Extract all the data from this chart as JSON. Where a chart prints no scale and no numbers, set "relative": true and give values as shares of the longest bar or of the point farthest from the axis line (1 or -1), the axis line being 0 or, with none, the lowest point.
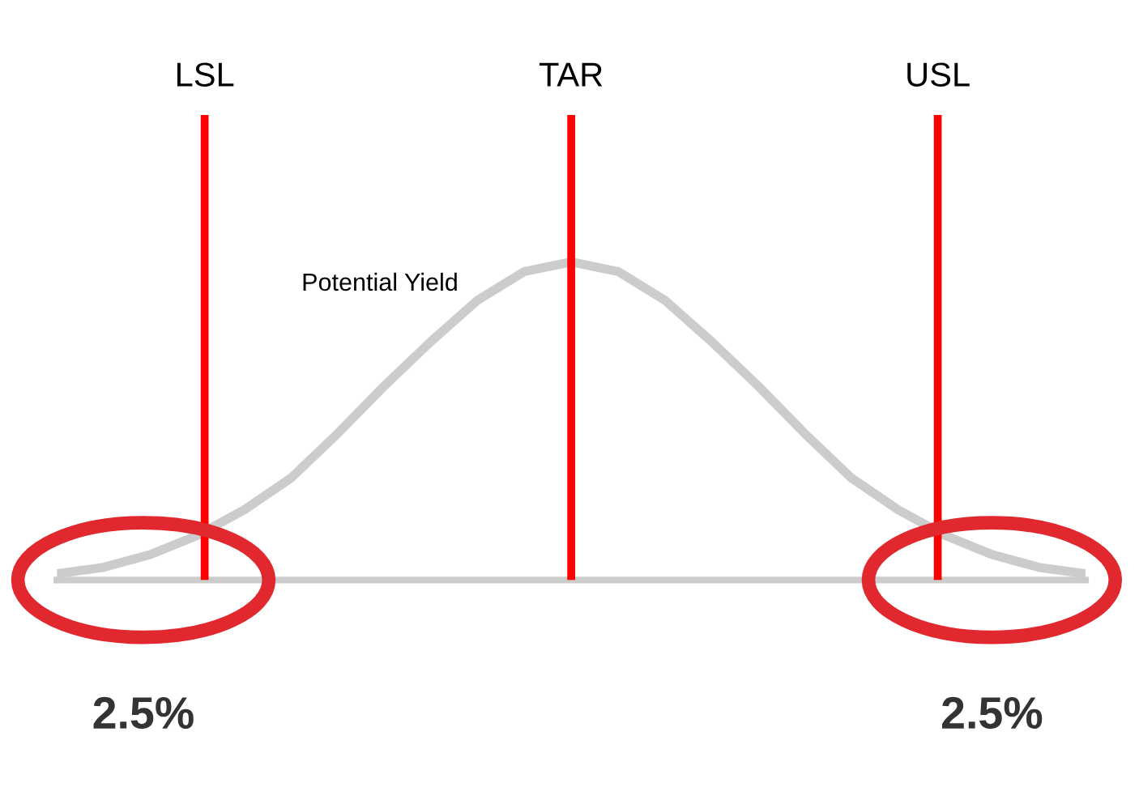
{
  "chart_data": {
    "type": "line",
    "relative": true,
    "legend": false,
    "marker": "none",
    "line_style": "solid",
    "categories": [
      null,
      null,
      null,
      null,
      null,
      null,
      null,
      null,
      null,
      null,
      null,
      null,
      null,
      null,
      null,
      null,
      null,
      null,
      null,
      null,
      null,
      null,
      null
    ],
    "series": [
      {
        "color": "#cccccc",
        "values": [
          0.02,
          0.04,
          0.08,
          0.14,
          0.22,
          0.32,
          0.46,
          0.61,
          0.75,
          0.88,
          0.97,
          1,
          0.97,
          0.88,
          0.75,
          0.61,
          0.46,
          0.32,
          0.22,
          0.14,
          0.08,
          0.04,
          0.02
        ]
      }
    ],
    "annotations": [
      "LSL",
      "TAR",
      "USL",
      "Potential Yield",
      "2.5%",
      "2.5%"
    ]
  }
}
